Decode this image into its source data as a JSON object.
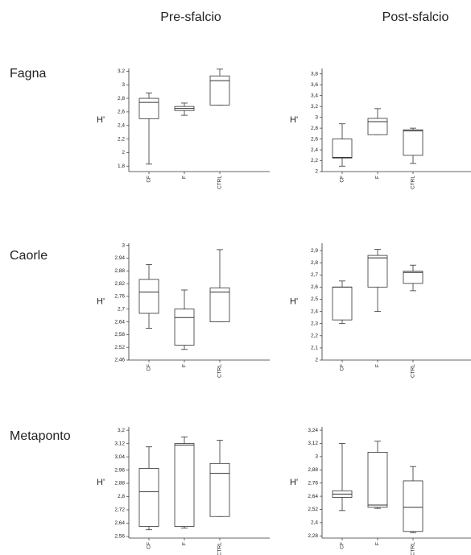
{
  "column_headers": [
    "Pre-sfalcio",
    "Post-sfalcio"
  ],
  "row_headers": [
    "Fagna",
    "Caorle",
    "Metaponto"
  ],
  "chart_data": [
    {
      "type": "box",
      "ylabel": "H'",
      "categories": [
        "CF",
        "F",
        "CTRL"
      ],
      "boxes": [
        {
          "min": 1.83,
          "q1": 2.5,
          "median": 2.74,
          "q3": 2.8,
          "max": 2.88
        },
        {
          "min": 2.55,
          "q1": 2.62,
          "median": 2.65,
          "q3": 2.68,
          "max": 2.73
        },
        {
          "min": 2.7,
          "q1": 2.7,
          "median": 3.06,
          "q3": 3.13,
          "max": 3.23
        }
      ],
      "ylim": [
        1.72,
        3.24
      ],
      "yticks": [
        {
          "value": 1.8,
          "label": "1,8"
        },
        2,
        {
          "value": 2.2,
          "label": "2,2"
        },
        {
          "value": 2.4,
          "label": "2,4"
        },
        {
          "value": 2.6,
          "label": "2,6"
        },
        {
          "value": 2.8,
          "label": "2,8"
        },
        3,
        {
          "value": 3.2,
          "label": "3,2"
        }
      ]
    },
    {
      "type": "box",
      "ylabel": "H'",
      "categories": [
        "CF",
        "F",
        "CTRL"
      ],
      "boxes": [
        {
          "min": 2.1,
          "q1": 2.25,
          "median": 2.26,
          "q3": 2.6,
          "max": 2.88
        },
        {
          "min": 2.68,
          "q1": 2.68,
          "median": 2.92,
          "q3": 2.98,
          "max": 3.16
        },
        {
          "min": 2.15,
          "q1": 2.3,
          "median": 2.75,
          "q3": 2.77,
          "max": 2.8
        }
      ],
      "ylim": [
        2,
        3.9
      ],
      "yticks": [
        2,
        {
          "value": 2.2,
          "label": "2,2"
        },
        {
          "value": 2.4,
          "label": "2,4"
        },
        {
          "value": 2.6,
          "label": "2,6"
        },
        {
          "value": 2.8,
          "label": "2,8"
        },
        3,
        {
          "value": 3.2,
          "label": "3,2"
        },
        {
          "value": 3.4,
          "label": "3,4"
        },
        {
          "value": 3.6,
          "label": "3,6"
        },
        {
          "value": 3.8,
          "label": "3,8"
        }
      ]
    },
    {
      "type": "box",
      "ylabel": "H'",
      "categories": [
        "CF",
        "F",
        "CTRL"
      ],
      "boxes": [
        {
          "min": 2.61,
          "q1": 2.68,
          "median": 2.78,
          "q3": 2.84,
          "max": 2.91
        },
        {
          "min": 2.51,
          "q1": 2.53,
          "median": 2.66,
          "q3": 2.7,
          "max": 2.79
        },
        {
          "min": 2.64,
          "q1": 2.64,
          "median": 2.78,
          "q3": 2.8,
          "max": 2.98
        }
      ],
      "ylim": [
        2.46,
        3.01
      ],
      "yticks": [
        {
          "value": 2.46,
          "label": "2,46"
        },
        {
          "value": 2.52,
          "label": "2,52"
        },
        {
          "value": 2.58,
          "label": "2,58"
        },
        {
          "value": 2.64,
          "label": "2,64"
        },
        {
          "value": 2.7,
          "label": "2,7"
        },
        {
          "value": 2.76,
          "label": "2,76"
        },
        {
          "value": 2.82,
          "label": "2,82"
        },
        {
          "value": 2.88,
          "label": "2,88"
        },
        {
          "value": 2.94,
          "label": "2,94"
        },
        3
      ]
    },
    {
      "type": "box",
      "ylabel": "H'",
      "categories": [
        "CF",
        "F",
        "CTRL"
      ],
      "boxes": [
        {
          "min": 2.3,
          "q1": 2.33,
          "median": 2.6,
          "q3": 2.6,
          "max": 2.65
        },
        {
          "min": 2.4,
          "q1": 2.6,
          "median": 2.84,
          "q3": 2.86,
          "max": 2.91
        },
        {
          "min": 2.57,
          "q1": 2.63,
          "median": 2.72,
          "q3": 2.73,
          "max": 2.78
        }
      ],
      "ylim": [
        2,
        2.96
      ],
      "yticks": [
        2,
        {
          "value": 2.1,
          "label": "2,1"
        },
        {
          "value": 2.2,
          "label": "2,2"
        },
        {
          "value": 2.3,
          "label": "2,3"
        },
        {
          "value": 2.4,
          "label": "2,4"
        },
        {
          "value": 2.5,
          "label": "2,5"
        },
        {
          "value": 2.6,
          "label": "2,6"
        },
        {
          "value": 2.7,
          "label": "2,7"
        },
        {
          "value": 2.8,
          "label": "2,8"
        },
        {
          "value": 2.9,
          "label": "2,9"
        }
      ]
    },
    {
      "type": "box",
      "ylabel": "H'",
      "categories": [
        "CF",
        "F",
        "CTRL"
      ],
      "boxes": [
        {
          "min": 2.6,
          "q1": 2.62,
          "median": 2.83,
          "q3": 2.97,
          "max": 3.1
        },
        {
          "min": 2.61,
          "q1": 2.62,
          "median": 3.11,
          "q3": 3.12,
          "max": 3.16
        },
        {
          "min": 2.68,
          "q1": 2.68,
          "median": 2.94,
          "q3": 3.0,
          "max": 3.14
        }
      ],
      "ylim": [
        2.55,
        3.22
      ],
      "yticks": [
        {
          "value": 2.56,
          "label": "2,56"
        },
        {
          "value": 2.64,
          "label": "2,64"
        },
        {
          "value": 2.72,
          "label": "2,72"
        },
        {
          "value": 2.8,
          "label": "2,8"
        },
        {
          "value": 2.88,
          "label": "2,88"
        },
        {
          "value": 2.96,
          "label": "2,96"
        },
        {
          "value": 3.04,
          "label": "3,04"
        },
        {
          "value": 3.12,
          "label": "3,12"
        },
        {
          "value": 3.2,
          "label": "3,2"
        }
      ]
    },
    {
      "type": "box",
      "ylabel": "H'",
      "categories": [
        "CF",
        "F",
        "CTRL"
      ],
      "boxes": [
        {
          "min": 2.51,
          "q1": 2.63,
          "median": 2.66,
          "q3": 2.69,
          "max": 3.12
        },
        {
          "min": 2.53,
          "q1": 2.54,
          "median": 2.56,
          "q3": 3.04,
          "max": 3.14
        },
        {
          "min": 2.31,
          "q1": 2.32,
          "median": 2.54,
          "q3": 2.78,
          "max": 2.91
        }
      ],
      "ylim": [
        2.26,
        3.27
      ],
      "yticks": [
        {
          "value": 2.28,
          "label": "2,28"
        },
        {
          "value": 2.4,
          "label": "2,4"
        },
        {
          "value": 2.52,
          "label": "2,52"
        },
        {
          "value": 2.64,
          "label": "2,64"
        },
        {
          "value": 2.76,
          "label": "2,76"
        },
        {
          "value": 2.88,
          "label": "2,88"
        },
        3,
        {
          "value": 3.12,
          "label": "3,12"
        },
        {
          "value": 3.24,
          "label": "3,24"
        }
      ]
    }
  ]
}
